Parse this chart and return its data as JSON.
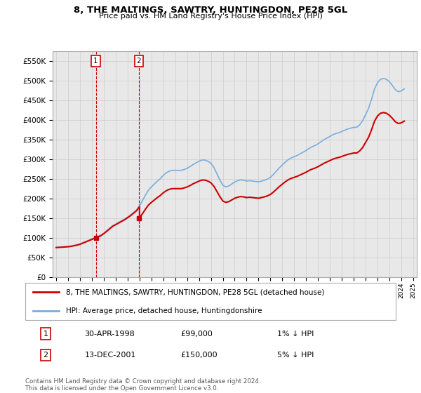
{
  "title": "8, THE MALTINGS, SAWTRY, HUNTINGDON, PE28 5GL",
  "subtitle": "Price paid vs. HM Land Registry's House Price Index (HPI)",
  "ylabel_ticks": [
    "£0",
    "£50K",
    "£100K",
    "£150K",
    "£200K",
    "£250K",
    "£300K",
    "£350K",
    "£400K",
    "£450K",
    "£500K",
    "£550K"
  ],
  "ytick_values": [
    0,
    50000,
    100000,
    150000,
    200000,
    250000,
    300000,
    350000,
    400000,
    450000,
    500000,
    550000
  ],
  "ylim": [
    0,
    575000
  ],
  "x_start_year": 1995,
  "x_end_year": 2025,
  "sale1_date": 1998.33,
  "sale1_price": 99000,
  "sale2_date": 2001.95,
  "sale2_price": 150000,
  "legend_line1": "8, THE MALTINGS, SAWTRY, HUNTINGDON, PE28 5GL (detached house)",
  "legend_line2": "HPI: Average price, detached house, Huntingdonshire",
  "table_row1": [
    "1",
    "30-APR-1998",
    "£99,000",
    "1% ↓ HPI"
  ],
  "table_row2": [
    "2",
    "13-DEC-2001",
    "£150,000",
    "5% ↓ HPI"
  ],
  "footnote": "Contains HM Land Registry data © Crown copyright and database right 2024.\nThis data is licensed under the Open Government Licence v3.0.",
  "color_red": "#cc0000",
  "color_blue": "#7aaddc",
  "color_grid": "#cccccc",
  "color_plot_bg": "#e8e8e8",
  "hpi_data_years": [
    1995.0,
    1995.25,
    1995.5,
    1995.75,
    1996.0,
    1996.25,
    1996.5,
    1996.75,
    1997.0,
    1997.25,
    1997.5,
    1997.75,
    1998.0,
    1998.25,
    1998.5,
    1998.75,
    1999.0,
    1999.25,
    1999.5,
    1999.75,
    2000.0,
    2000.25,
    2000.5,
    2000.75,
    2001.0,
    2001.25,
    2001.5,
    2001.75,
    2002.0,
    2002.25,
    2002.5,
    2002.75,
    2003.0,
    2003.25,
    2003.5,
    2003.75,
    2004.0,
    2004.25,
    2004.5,
    2004.75,
    2005.0,
    2005.25,
    2005.5,
    2005.75,
    2006.0,
    2006.25,
    2006.5,
    2006.75,
    2007.0,
    2007.25,
    2007.5,
    2007.75,
    2008.0,
    2008.25,
    2008.5,
    2008.75,
    2009.0,
    2009.25,
    2009.5,
    2009.75,
    2010.0,
    2010.25,
    2010.5,
    2010.75,
    2011.0,
    2011.25,
    2011.5,
    2011.75,
    2012.0,
    2012.25,
    2012.5,
    2012.75,
    2013.0,
    2013.25,
    2013.5,
    2013.75,
    2014.0,
    2014.25,
    2014.5,
    2014.75,
    2015.0,
    2015.25,
    2015.5,
    2015.75,
    2016.0,
    2016.25,
    2016.5,
    2016.75,
    2017.0,
    2017.25,
    2017.5,
    2017.75,
    2018.0,
    2018.25,
    2018.5,
    2018.75,
    2019.0,
    2019.25,
    2019.5,
    2019.75,
    2020.0,
    2020.25,
    2020.5,
    2020.75,
    2021.0,
    2021.25,
    2021.5,
    2021.75,
    2022.0,
    2022.25,
    2022.5,
    2022.75,
    2023.0,
    2023.25,
    2023.5,
    2023.75,
    2024.0,
    2024.25
  ],
  "hpi_data_values": [
    72000,
    72500,
    73000,
    73500,
    74000,
    75000,
    76500,
    78000,
    80000,
    83000,
    86000,
    89000,
    92000,
    95000,
    98000,
    101000,
    106000,
    112000,
    118000,
    124000,
    128000,
    132000,
    136000,
    140000,
    145000,
    150000,
    156000,
    162000,
    172000,
    185000,
    198000,
    210000,
    218000,
    225000,
    232000,
    238000,
    246000,
    252000,
    256000,
    258000,
    258000,
    258000,
    258000,
    260000,
    263000,
    267000,
    272000,
    276000,
    280000,
    283000,
    283000,
    280000,
    275000,
    265000,
    250000,
    235000,
    222000,
    218000,
    220000,
    225000,
    230000,
    233000,
    235000,
    234000,
    232000,
    233000,
    232000,
    231000,
    230000,
    232000,
    234000,
    237000,
    241000,
    248000,
    256000,
    264000,
    271000,
    278000,
    284000,
    288000,
    291000,
    294000,
    298000,
    302000,
    306000,
    311000,
    315000,
    318000,
    322000,
    327000,
    332000,
    336000,
    340000,
    344000,
    347000,
    349000,
    352000,
    355000,
    358000,
    360000,
    362000,
    362000,
    368000,
    378000,
    393000,
    408000,
    430000,
    455000,
    470000,
    478000,
    480000,
    478000,
    472000,
    463000,
    453000,
    448000,
    450000,
    455000
  ]
}
